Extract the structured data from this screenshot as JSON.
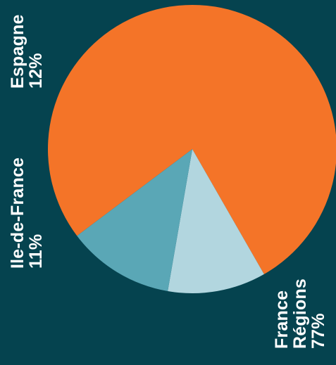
{
  "chart_data": {
    "type": "pie",
    "title": "",
    "slices": [
      {
        "name": "France Régions",
        "line1": "France",
        "line2": "Régions",
        "value": 77,
        "value_label": "77%",
        "color": "#f47428"
      },
      {
        "name": "Ile-de-France",
        "line1": "Ile-de-France",
        "value": 11,
        "value_label": "11%",
        "color": "#b2d6df"
      },
      {
        "name": "Espagne",
        "line1": "Espagne",
        "value": 12,
        "value_label": "12%",
        "color": "#5aa7b6"
      }
    ]
  },
  "background_color": "#05434f"
}
